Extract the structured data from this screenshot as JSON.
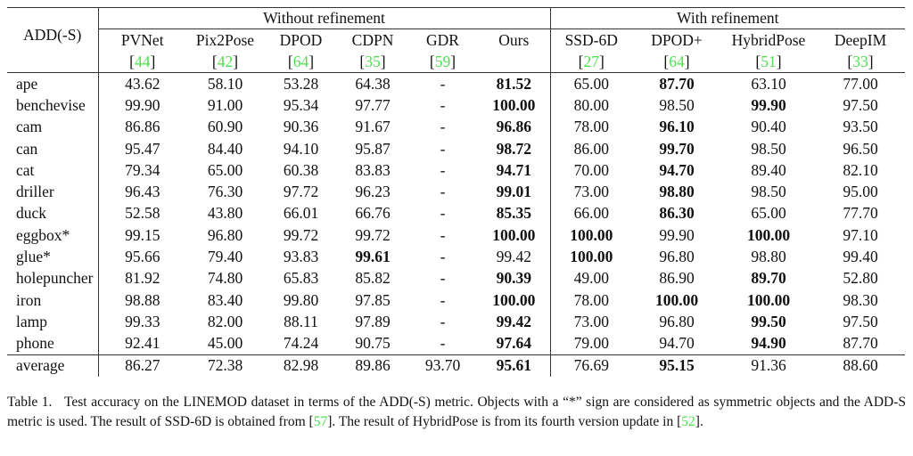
{
  "table": {
    "corner_label": "ADD(-S)",
    "groups": [
      "Without refinement",
      "With refinement"
    ],
    "methods": [
      {
        "name": "PVNet",
        "ref": "44"
      },
      {
        "name": "Pix2Pose",
        "ref": "42"
      },
      {
        "name": "DPOD",
        "ref": "64"
      },
      {
        "name": "CDPN",
        "ref": "35"
      },
      {
        "name": "GDR",
        "ref": "59"
      },
      {
        "name": "Ours",
        "ref": ""
      },
      {
        "name": "SSD-6D",
        "ref": "27"
      },
      {
        "name": "DPOD+",
        "ref": "64"
      },
      {
        "name": "HybridPose",
        "ref": "51"
      },
      {
        "name": "DeepIM",
        "ref": "33"
      }
    ],
    "rows": [
      {
        "object": "ape",
        "values": [
          "43.62",
          "58.10",
          "53.28",
          "64.38",
          "-",
          "81.52",
          "65.00",
          "87.70",
          "63.10",
          "77.00"
        ],
        "bold": [
          5,
          7
        ]
      },
      {
        "object": "benchevise",
        "values": [
          "99.90",
          "91.00",
          "95.34",
          "97.77",
          "-",
          "100.00",
          "80.00",
          "98.50",
          "99.90",
          "97.50"
        ],
        "bold": [
          5,
          8
        ]
      },
      {
        "object": "cam",
        "values": [
          "86.86",
          "60.90",
          "90.36",
          "91.67",
          "-",
          "96.86",
          "78.00",
          "96.10",
          "90.40",
          "93.50"
        ],
        "bold": [
          5,
          7
        ]
      },
      {
        "object": "can",
        "values": [
          "95.47",
          "84.40",
          "94.10",
          "95.87",
          "-",
          "98.72",
          "86.00",
          "99.70",
          "98.50",
          "96.50"
        ],
        "bold": [
          5,
          7
        ]
      },
      {
        "object": "cat",
        "values": [
          "79.34",
          "65.00",
          "60.38",
          "83.83",
          "-",
          "94.71",
          "70.00",
          "94.70",
          "89.40",
          "82.10"
        ],
        "bold": [
          5,
          7
        ]
      },
      {
        "object": "driller",
        "values": [
          "96.43",
          "76.30",
          "97.72",
          "96.23",
          "-",
          "99.01",
          "73.00",
          "98.80",
          "98.50",
          "95.00"
        ],
        "bold": [
          5,
          7
        ]
      },
      {
        "object": "duck",
        "values": [
          "52.58",
          "43.80",
          "66.01",
          "66.76",
          "-",
          "85.35",
          "66.00",
          "86.30",
          "65.00",
          "77.70"
        ],
        "bold": [
          5,
          7
        ]
      },
      {
        "object": "eggbox*",
        "values": [
          "99.15",
          "96.80",
          "99.72",
          "99.72",
          "-",
          "100.00",
          "100.00",
          "99.90",
          "100.00",
          "97.10"
        ],
        "bold": [
          5,
          6,
          8
        ]
      },
      {
        "object": "glue*",
        "values": [
          "95.66",
          "79.40",
          "93.83",
          "99.61",
          "-",
          "99.42",
          "100.00",
          "96.80",
          "98.80",
          "99.40"
        ],
        "bold": [
          3,
          6
        ]
      },
      {
        "object": "holepuncher",
        "values": [
          "81.92",
          "74.80",
          "65.83",
          "85.82",
          "-",
          "90.39",
          "49.00",
          "86.90",
          "89.70",
          "52.80"
        ],
        "bold": [
          5,
          8
        ]
      },
      {
        "object": "iron",
        "values": [
          "98.88",
          "83.40",
          "99.80",
          "97.85",
          "-",
          "100.00",
          "78.00",
          "100.00",
          "100.00",
          "98.30"
        ],
        "bold": [
          5,
          7,
          8
        ]
      },
      {
        "object": "lamp",
        "values": [
          "99.33",
          "82.00",
          "88.11",
          "97.89",
          "-",
          "99.42",
          "73.00",
          "96.80",
          "99.50",
          "97.50"
        ],
        "bold": [
          5,
          8
        ]
      },
      {
        "object": "phone",
        "values": [
          "92.41",
          "45.00",
          "74.24",
          "90.75",
          "-",
          "97.64",
          "79.00",
          "94.70",
          "94.90",
          "87.70"
        ],
        "bold": [
          5,
          8
        ]
      }
    ],
    "average": {
      "object": "average",
      "values": [
        "86.27",
        "72.38",
        "82.98",
        "89.86",
        "93.70",
        "95.61",
        "76.69",
        "95.15",
        "91.36",
        "88.60"
      ],
      "bold": [
        5,
        7
      ]
    }
  },
  "caption": {
    "label": "Table 1.",
    "part1": "Test accuracy on the LINEMOD dataset in terms of the ADD(-S) metric. Objects with a “*” sign are considered as symmetric objects and the ADD-S metric is used. The result of SSD-6D is obtained from ",
    "ref1": "57",
    "part2": ". The result of HybridPose is from its fourth version update in ",
    "ref2": "52",
    "part3": "."
  },
  "colors": {
    "citation": "#4ee04e",
    "text": "#111111"
  }
}
